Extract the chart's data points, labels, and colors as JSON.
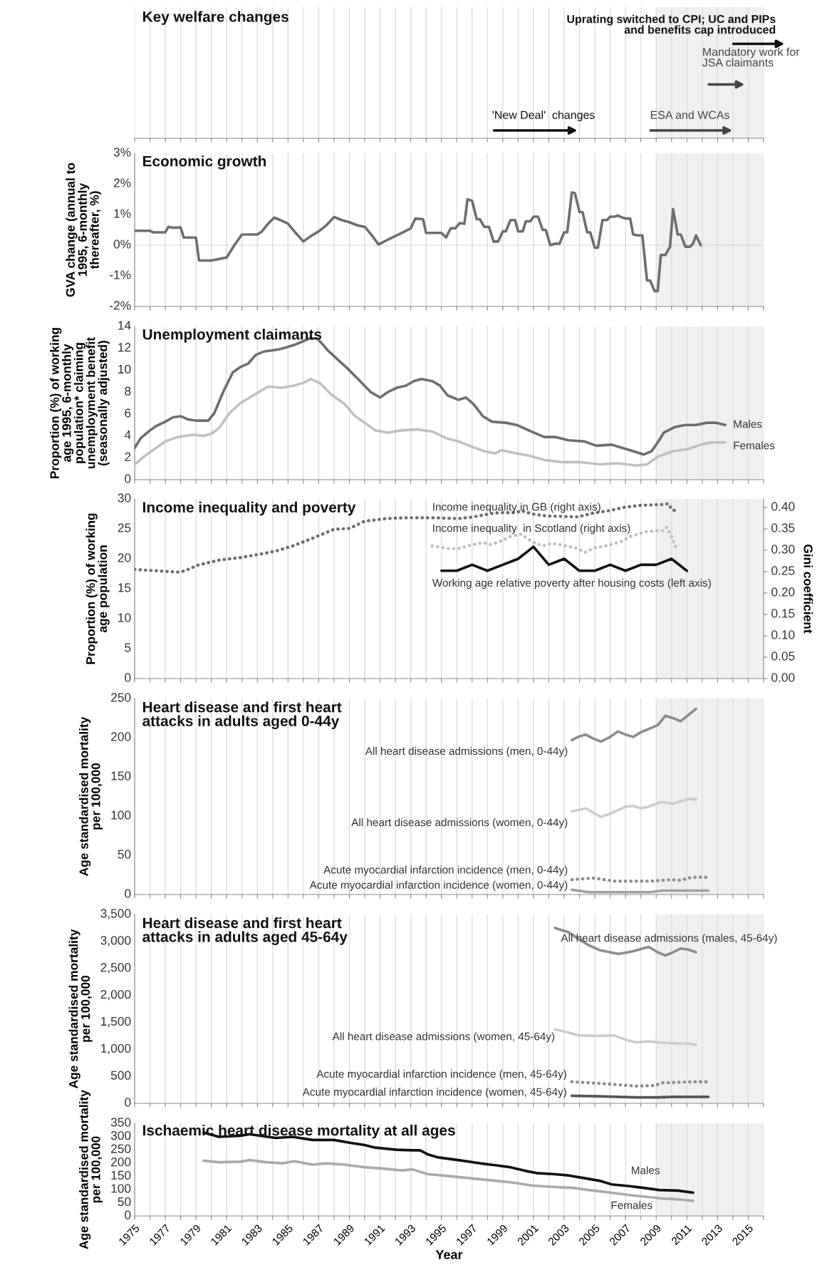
{
  "chart_data": [
    {
      "type": "other",
      "title": "Key welfare changes",
      "annotations": [
        "'New Deal'  changes",
        "ESA and WCAs",
        "Mandatory work for\nJSA claimants",
        "Uprating switched to CPI; UC and PIPs\nand benefits cap introduced"
      ]
    },
    {
      "type": "line",
      "title": "Economic growth",
      "ylabel": "GVA change (annual to\n1995, 6-monthly\nthereafter, %)",
      "xlim": [
        1975,
        2016
      ],
      "xticks": [
        1975,
        {
          "value": 1976,
          "label": null
        },
        1977,
        {
          "value": 1978,
          "label": null
        },
        1979,
        {
          "value": 1980,
          "label": null
        },
        1981,
        {
          "value": 1982,
          "label": null
        },
        1983,
        {
          "value": 1984,
          "label": null
        },
        1985,
        {
          "value": 1986,
          "label": null
        },
        1987,
        {
          "value": 1988,
          "label": null
        },
        1989,
        {
          "value": 1990,
          "label": null
        },
        1991,
        {
          "value": 1992,
          "label": null
        },
        1993,
        {
          "value": 1994,
          "label": null
        },
        1995,
        {
          "value": 1996,
          "label": null
        },
        1997,
        {
          "value": 1998,
          "label": null
        },
        1999,
        {
          "value": 2000,
          "label": null
        },
        2001,
        {
          "value": 2002,
          "label": null
        },
        2003,
        {
          "value": 2004,
          "label": null
        },
        2005,
        {
          "value": 2006,
          "label": null
        },
        2007,
        {
          "value": 2008,
          "label": null
        },
        2009,
        {
          "value": 2010,
          "label": null
        },
        2011,
        {
          "value": 2012,
          "label": null
        },
        2013,
        {
          "value": 2014,
          "label": null
        },
        2015,
        {
          "value": 2016,
          "label": null
        }
      ],
      "ylim": [
        -2,
        3
      ],
      "yticks": [
        {
          "value": -2,
          "label": "-2%"
        },
        {
          "value": -1,
          "label": "-1%"
        },
        {
          "value": 0,
          "label": "0%"
        },
        {
          "value": 1,
          "label": "1%"
        },
        {
          "value": 2,
          "label": "2%"
        },
        {
          "value": 3,
          "label": "3%"
        }
      ],
      "tick_labels": "y",
      "grid": "x",
      "bands": [
        {
          "axis": "x",
          "from": 2009,
          "to": 2016,
          "color": "#f0f0f0"
        }
      ],
      "ref_lines": [
        {
          "axis": "y",
          "value": 0,
          "color": "#999999",
          "line_style": "dotted"
        }
      ],
      "series": [
        {
          "color": "#6e6e6e",
          "x": [
            1975.0,
            1976.0,
            1976.2,
            1977.0,
            1977.2,
            1977.5,
            1978.0,
            1978.2,
            1979.0,
            1979.2,
            1980.0,
            1981.0,
            1981.5,
            1982.0,
            1983.0,
            1983.3,
            1983.7,
            1984.1,
            1984.5,
            1985.0,
            1985.5,
            1986.0,
            1986.5,
            1987.0,
            1987.5,
            1988.0,
            1988.5,
            1989.0,
            1989.5,
            1990.0,
            1990.5,
            1990.9,
            1991.5,
            1992.0,
            1992.5,
            1993.0,
            1993.3,
            1993.8,
            1994.0,
            1995.0,
            1995.3,
            1995.6,
            1995.9,
            1996.2,
            1996.5,
            1996.7,
            1997.0,
            1997.3,
            1997.5,
            1997.8,
            1998.1,
            1998.4,
            1998.7,
            1999.0,
            1999.2,
            1999.5,
            1999.8,
            2000.0,
            2000.3,
            2000.5,
            2000.8,
            2001.0,
            2001.3,
            2001.6,
            2001.8,
            2002.1,
            2002.4,
            2002.7,
            2003.0,
            2003.2,
            2003.5,
            2003.7,
            2004.0,
            2004.2,
            2004.5,
            2004.7,
            2005.0,
            2005.2,
            2005.5,
            2005.8,
            2006.0,
            2006.3,
            2006.5,
            2006.8,
            2007.0,
            2007.3,
            2007.5,
            2007.8,
            2008.1,
            2008.4,
            2008.6,
            2008.9,
            2009.1,
            2009.3,
            2009.6,
            2009.9,
            2010.1,
            2010.4,
            2010.6,
            2010.9,
            2011.2,
            2011.4,
            2011.6,
            2011.9
          ],
          "values": [
            0.47,
            0.47,
            0.42,
            0.42,
            0.6,
            0.57,
            0.58,
            0.25,
            0.25,
            -0.5,
            -0.5,
            -0.4,
            0,
            0.35,
            0.35,
            0.45,
            0.7,
            0.9,
            0.82,
            0.7,
            0.4,
            0.12,
            0.3,
            0.45,
            0.65,
            0.92,
            0.82,
            0.75,
            0.65,
            0.6,
            0.3,
            0.02,
            0.18,
            0.3,
            0.42,
            0.55,
            0.87,
            0.85,
            0.4,
            0.4,
            0.25,
            0.55,
            0.55,
            0.72,
            0.7,
            1.5,
            1.45,
            0.85,
            0.85,
            0.6,
            0.6,
            0.12,
            0.12,
            0.45,
            0.45,
            0.82,
            0.82,
            0.45,
            0.45,
            0.78,
            0.78,
            0.93,
            0.93,
            0.5,
            0.5,
            0.0,
            0.05,
            0.05,
            0.42,
            0.42,
            1.72,
            1.7,
            1.08,
            1.08,
            0.42,
            0.42,
            -0.08,
            -0.08,
            0.82,
            0.82,
            0.93,
            0.93,
            0.97,
            0.9,
            0.87,
            0.87,
            0.35,
            0.32,
            0.32,
            -1.15,
            -1.15,
            -1.5,
            -1.5,
            -0.32,
            -0.32,
            -0.05,
            1.18,
            0.35,
            0.35,
            -0.05,
            -0.05,
            0.05,
            0.32,
            0.0
          ]
        }
      ]
    },
    {
      "type": "line",
      "title": "Unemployment claimants",
      "ylabel": "Proportion (%) of working\nage 1995, 6-monthly\npopulation* claiming\nunemployment benefit\n(seasonally adjusted)",
      "xlim": [
        1975,
        2016
      ],
      "xticks": [
        1975,
        {
          "value": 1976,
          "label": null
        },
        1977,
        {
          "value": 1978,
          "label": null
        },
        1979,
        {
          "value": 1980,
          "label": null
        },
        1981,
        {
          "value": 1982,
          "label": null
        },
        1983,
        {
          "value": 1984,
          "label": null
        },
        1985,
        {
          "value": 1986,
          "label": null
        },
        1987,
        {
          "value": 1988,
          "label": null
        },
        1989,
        {
          "value": 1990,
          "label": null
        },
        1991,
        {
          "value": 1992,
          "label": null
        },
        1993,
        {
          "value": 1994,
          "label": null
        },
        1995,
        {
          "value": 1996,
          "label": null
        },
        1997,
        {
          "value": 1998,
          "label": null
        },
        1999,
        {
          "value": 2000,
          "label": null
        },
        2001,
        {
          "value": 2002,
          "label": null
        },
        2003,
        {
          "value": 2004,
          "label": null
        },
        2005,
        {
          "value": 2006,
          "label": null
        },
        2007,
        {
          "value": 2008,
          "label": null
        },
        2009,
        {
          "value": 2010,
          "label": null
        },
        2011,
        {
          "value": 2012,
          "label": null
        },
        2013,
        {
          "value": 2014,
          "label": null
        },
        2015,
        {
          "value": 2016,
          "label": null
        }
      ],
      "ylim": [
        0,
        14
      ],
      "yticks": [
        0,
        2,
        4,
        6,
        8,
        10,
        12,
        14
      ],
      "tick_labels": "y",
      "grid": "x",
      "bands": [
        {
          "axis": "x",
          "from": 2009,
          "to": 2016,
          "color": "#f0f0f0"
        }
      ],
      "series": [
        {
          "name": "Males",
          "color": "#6e6e6e",
          "x": [
            1975,
            1975.4,
            1976,
            1976.4,
            1977,
            1977.5,
            1978,
            1978.5,
            1979,
            1979.8,
            1980.2,
            1980.8,
            1981.4,
            1981.9,
            1982.4,
            1982.9,
            1983.4,
            1983.9,
            1984.4,
            1984.9,
            1985.4,
            1985.9,
            1986.4,
            1986.9,
            1987.3,
            1987.6,
            1988.3,
            1989.0,
            1989.7,
            1990.4,
            1991.0,
            1991.5,
            1992.1,
            1992.7,
            1993.2,
            1993.7,
            1994.4,
            1994.9,
            1995.4,
            1996.1,
            1996.6,
            1997.1,
            1997.7,
            1998.3,
            1999.2,
            1999.9,
            2000.7,
            2001.7,
            2002.4,
            2003.3,
            2004.3,
            2005.1,
            2006.1,
            2006.8,
            2007.5,
            2008.2,
            2008.7,
            2009.1,
            2009.5,
            2010.2,
            2010.9,
            2011.6,
            2012.3,
            2012.9,
            2013.5
          ],
          "values": [
            2.9,
            3.8,
            4.5,
            4.9,
            5.3,
            5.7,
            5.8,
            5.5,
            5.4,
            5.4,
            6.1,
            8.1,
            9.8,
            10.3,
            10.6,
            11.4,
            11.7,
            11.8,
            11.9,
            12.1,
            12.3,
            12.6,
            12.9,
            12.9,
            12.3,
            11.8,
            10.9,
            10.0,
            9.0,
            8.0,
            7.5,
            8.0,
            8.4,
            8.6,
            9.0,
            9.2,
            9.0,
            8.6,
            7.7,
            7.3,
            7.5,
            6.9,
            5.8,
            5.3,
            5.2,
            5.0,
            4.5,
            3.9,
            3.9,
            3.6,
            3.5,
            3.1,
            3.2,
            2.9,
            2.6,
            2.3,
            2.6,
            3.4,
            4.3,
            4.8,
            5.0,
            5.0,
            5.2,
            5.2,
            5.0
          ]
        },
        {
          "name": "Females",
          "color": "#c0c0c0",
          "x": [
            1975,
            1975.6,
            1976.3,
            1977.0,
            1977.8,
            1978.8,
            1979.5,
            1980.0,
            1980.5,
            1981.2,
            1981.9,
            1982.5,
            1983.2,
            1983.7,
            1984.6,
            1985.4,
            1986.1,
            1986.5,
            1987.1,
            1987.8,
            1988.7,
            1989.3,
            1990.0,
            1990.7,
            1991.5,
            1992.4,
            1993.4,
            1994.4,
            1995.3,
            1996.1,
            1997.0,
            1997.8,
            1998.5,
            1998.9,
            1999.9,
            2000.7,
            2001.7,
            2002.9,
            2004.1,
            2005.3,
            2006.5,
            2007.7,
            2008.4,
            2009.1,
            2010.1,
            2011.1,
            2011.9,
            2012.6,
            2013.5
          ],
          "values": [
            1.4,
            2.1,
            2.8,
            3.5,
            3.9,
            4.1,
            4.0,
            4.2,
            4.7,
            6.1,
            7.0,
            7.5,
            8.1,
            8.5,
            8.4,
            8.6,
            8.9,
            9.2,
            8.8,
            7.8,
            6.9,
            5.9,
            5.2,
            4.5,
            4.3,
            4.5,
            4.6,
            4.4,
            3.8,
            3.5,
            3.0,
            2.6,
            2.4,
            2.7,
            2.4,
            2.2,
            1.8,
            1.6,
            1.6,
            1.4,
            1.5,
            1.3,
            1.4,
            2.1,
            2.6,
            2.8,
            3.2,
            3.4,
            3.4
          ]
        }
      ]
    },
    {
      "type": "line",
      "title": "Income inequality and poverty",
      "ylabel": "Proportion (%) of working\nage population",
      "y2label": "Gini coefficient",
      "xlim": [
        1975,
        2016
      ],
      "xticks": [
        1975,
        {
          "value": 1976,
          "label": null
        },
        1977,
        {
          "value": 1978,
          "label": null
        },
        1979,
        {
          "value": 1980,
          "label": null
        },
        1981,
        {
          "value": 1982,
          "label": null
        },
        1983,
        {
          "value": 1984,
          "label": null
        },
        1985,
        {
          "value": 1986,
          "label": null
        },
        1987,
        {
          "value": 1988,
          "label": null
        },
        1989,
        {
          "value": 1990,
          "label": null
        },
        1991,
        {
          "value": 1992,
          "label": null
        },
        1993,
        {
          "value": 1994,
          "label": null
        },
        1995,
        {
          "value": 1996,
          "label": null
        },
        1997,
        {
          "value": 1998,
          "label": null
        },
        1999,
        {
          "value": 2000,
          "label": null
        },
        2001,
        {
          "value": 2002,
          "label": null
        },
        2003,
        {
          "value": 2004,
          "label": null
        },
        2005,
        {
          "value": 2006,
          "label": null
        },
        2007,
        {
          "value": 2008,
          "label": null
        },
        2009,
        {
          "value": 2010,
          "label": null
        },
        2011,
        {
          "value": 2012,
          "label": null
        },
        2013,
        {
          "value": 2014,
          "label": null
        },
        2015,
        {
          "value": 2016,
          "label": null
        }
      ],
      "ylim": [
        0,
        30
      ],
      "yticks": [
        0,
        5,
        10,
        15,
        20,
        25,
        30
      ],
      "y2lim": [
        0,
        0.42
      ],
      "y2ticks": [
        {
          "value": 0,
          "label": "0.00"
        },
        {
          "value": 0.05,
          "label": "0.05"
        },
        {
          "value": 0.1,
          "label": "0.10"
        },
        {
          "value": 0.15,
          "label": "0.15"
        },
        {
          "value": 0.2,
          "label": "0.20"
        },
        {
          "value": 0.25,
          "label": "0.25"
        },
        {
          "value": 0.3,
          "label": "0.30"
        },
        {
          "value": 0.35,
          "label": "0.35"
        },
        {
          "value": 0.4,
          "label": "0.40"
        }
      ],
      "tick_labels": "y",
      "grid": "x",
      "bands": [
        {
          "axis": "x",
          "from": 2009,
          "to": 2016,
          "color": "#f0f0f0"
        }
      ],
      "series": [
        {
          "name": "Income inequality in GB (right axis)",
          "axis": "y2",
          "line_style": "dotted",
          "color": "#6e6e6e",
          "x": [
            1975,
            1976.4,
            1977.8,
            1978.3,
            1979.1,
            1980.5,
            1981.9,
            1983.2,
            1984.2,
            1985.3,
            1986.6,
            1988.0,
            1989.0,
            1990.0,
            1991.4,
            1992.7,
            1994.4,
            1996.1,
            1997.1,
            1998.1,
            1998.8,
            1999.9,
            2000.2,
            2000.9,
            2001.9,
            2002.9,
            2003.9,
            2004.9,
            2006.0,
            2007.0,
            2008.0,
            2009.4,
            2009.8,
            2010.0,
            2010.2
          ],
          "values": [
            0.255,
            0.252,
            0.249,
            0.252,
            0.265,
            0.277,
            0.283,
            0.291,
            0.298,
            0.31,
            0.328,
            0.349,
            0.351,
            0.368,
            0.374,
            0.376,
            0.376,
            0.374,
            0.378,
            0.385,
            0.388,
            0.388,
            0.393,
            0.385,
            0.38,
            0.379,
            0.378,
            0.387,
            0.393,
            0.401,
            0.405,
            0.407,
            0.409,
            0.396,
            0.393
          ]
        },
        {
          "name": "Income inequality  in Scotland (right axis)",
          "axis": "y2",
          "line_style": "dotted",
          "color": "#c0c0c0",
          "x": [
            1994.4,
            1995.0,
            1995.4,
            1996.1,
            1996.8,
            1997.7,
            1998.2,
            1998.8,
            1999.5,
            2000.2,
            2000.9,
            2001.6,
            2002.2,
            2002.9,
            2003.8,
            2004.4,
            2004.9,
            2005.8,
            2006.7,
            2007.3,
            2008.4,
            2009.4,
            2009.7,
            2010.0,
            2010.3
          ],
          "values": [
            0.31,
            0.307,
            0.304,
            0.304,
            0.311,
            0.318,
            0.313,
            0.32,
            0.332,
            0.338,
            0.32,
            0.31,
            0.316,
            0.312,
            0.305,
            0.295,
            0.305,
            0.311,
            0.32,
            0.332,
            0.344,
            0.346,
            0.354,
            0.332,
            0.305
          ]
        },
        {
          "name": "Working age relative poverty after housing costs (left axis)",
          "color": "#111111",
          "x": [
            1995,
            1996,
            1997,
            1998,
            1999,
            2000,
            2001,
            2002,
            2003,
            2004,
            2005,
            2006,
            2007,
            2008,
            2009,
            2010,
            2011
          ],
          "values": [
            18,
            18,
            19,
            18,
            19,
            20,
            22,
            19,
            20,
            18,
            18,
            19,
            18,
            19,
            19,
            20,
            18
          ]
        }
      ]
    },
    {
      "type": "line",
      "title": "Heart disease and first heart\nattacks in adults aged 0-44y",
      "ylabel": "Age standardised mortality\nper 100,000",
      "xlim": [
        1975,
        2016
      ],
      "xticks": [
        1975,
        {
          "value": 1976,
          "label": null
        },
        1977,
        {
          "value": 1978,
          "label": null
        },
        1979,
        {
          "value": 1980,
          "label": null
        },
        1981,
        {
          "value": 1982,
          "label": null
        },
        1983,
        {
          "value": 1984,
          "label": null
        },
        1985,
        {
          "value": 1986,
          "label": null
        },
        1987,
        {
          "value": 1988,
          "label": null
        },
        1989,
        {
          "value": 1990,
          "label": null
        },
        1991,
        {
          "value": 1992,
          "label": null
        },
        1993,
        {
          "value": 1994,
          "label": null
        },
        1995,
        {
          "value": 1996,
          "label": null
        },
        1997,
        {
          "value": 1998,
          "label": null
        },
        1999,
        {
          "value": 2000,
          "label": null
        },
        2001,
        {
          "value": 2002,
          "label": null
        },
        2003,
        {
          "value": 2004,
          "label": null
        },
        2005,
        {
          "value": 2006,
          "label": null
        },
        2007,
        {
          "value": 2008,
          "label": null
        },
        2009,
        {
          "value": 2010,
          "label": null
        },
        2011,
        {
          "value": 2012,
          "label": null
        },
        2013,
        {
          "value": 2014,
          "label": null
        },
        2015,
        {
          "value": 2016,
          "label": null
        }
      ],
      "ylim": [
        0,
        250
      ],
      "yticks": [
        0,
        50,
        100,
        150,
        200,
        250
      ],
      "tick_labels": "y",
      "grid": "x",
      "bands": [
        {
          "axis": "x",
          "from": 2009,
          "to": 2016,
          "color": "#f0f0f0"
        }
      ],
      "series": [
        {
          "name": "All heart disease admissions (men, 0-44y)",
          "color": "#8c8c8c",
          "x": [
            2003.5,
            2003.9,
            2004.4,
            2004.9,
            2005.4,
            2006.0,
            2006.5,
            2007.0,
            2007.5,
            2008.0,
            2008.5,
            2009.1,
            2009.6,
            2010.1,
            2010.6,
            2011.1,
            2011.6
          ],
          "values": [
            197,
            201,
            204,
            199,
            195,
            201,
            208,
            204,
            201,
            207,
            211,
            216,
            228,
            225,
            221,
            229,
            237
          ]
        },
        {
          "name": "All heart disease admissions (women, 0-44y)",
          "color": "#cccccc",
          "x": [
            2003.5,
            2004.4,
            2005.4,
            2006.0,
            2007.0,
            2007.5,
            2008.0,
            2008.5,
            2009.3,
            2010.1,
            2011.1,
            2011.6
          ],
          "values": [
            106,
            110,
            99,
            103,
            112,
            113,
            110,
            112,
            118,
            116,
            122,
            121
          ]
        },
        {
          "name": "Acute myocardial infarction incidence (men, 0-44y)",
          "line_style": "dotted",
          "color": "#8c8c8c",
          "x": [
            2003.5,
            2004.9,
            2006.3,
            2008.6,
            2010.0,
            2010.6,
            2011.3,
            2012.3
          ],
          "values": [
            19,
            21,
            17,
            17,
            19,
            18,
            22,
            22
          ]
        },
        {
          "name": "Acute myocardial infarction incidence (women, 0-44y)",
          "color": "#a0a0a0",
          "x": [
            2003.5,
            2004.6,
            2008.6,
            2009.4,
            2012.4
          ],
          "values": [
            6,
            3,
            3,
            5,
            5
          ]
        }
      ]
    },
    {
      "type": "line",
      "title": "Heart disease and first heart\nattacks in adults aged 45-64y",
      "ylabel": "Age standardised mortality\nper 100,000",
      "xlim": [
        1975,
        2016
      ],
      "xticks": [
        1975,
        {
          "value": 1976,
          "label": null
        },
        1977,
        {
          "value": 1978,
          "label": null
        },
        1979,
        {
          "value": 1980,
          "label": null
        },
        1981,
        {
          "value": 1982,
          "label": null
        },
        1983,
        {
          "value": 1984,
          "label": null
        },
        1985,
        {
          "value": 1986,
          "label": null
        },
        1987,
        {
          "value": 1988,
          "label": null
        },
        1989,
        {
          "value": 1990,
          "label": null
        },
        1991,
        {
          "value": 1992,
          "label": null
        },
        1993,
        {
          "value": 1994,
          "label": null
        },
        1995,
        {
          "value": 1996,
          "label": null
        },
        1997,
        {
          "value": 1998,
          "label": null
        },
        1999,
        {
          "value": 2000,
          "label": null
        },
        2001,
        {
          "value": 2002,
          "label": null
        },
        2003,
        {
          "value": 2004,
          "label": null
        },
        2005,
        {
          "value": 2006,
          "label": null
        },
        2007,
        {
          "value": 2008,
          "label": null
        },
        2009,
        {
          "value": 2010,
          "label": null
        },
        2011,
        {
          "value": 2012,
          "label": null
        },
        2013,
        {
          "value": 2014,
          "label": null
        },
        2015,
        {
          "value": 2016,
          "label": null
        }
      ],
      "ylim": [
        0,
        3500
      ],
      "yticks": [
        0,
        {
          "value": 500,
          "label": "500"
        },
        {
          "value": 1000,
          "label": "1,000"
        },
        {
          "value": 1500,
          "label": "1,500"
        },
        {
          "value": 2000,
          "label": "2,000"
        },
        {
          "value": 2500,
          "label": "2,500"
        },
        {
          "value": 3000,
          "label": "3,000"
        },
        {
          "value": 3500,
          "label": "3,500"
        }
      ],
      "tick_labels": "y",
      "grid": "x",
      "bands": [
        {
          "axis": "x",
          "from": 2009,
          "to": 2016,
          "color": "#f0f0f0"
        }
      ],
      "series": [
        {
          "name": "All heart disease admissions (males, 45-64y)",
          "color": "#8c8c8c",
          "x": [
            2002.4,
            2003.3,
            2003.9,
            2004.6,
            2005.3,
            2006.0,
            2006.5,
            2007.0,
            2007.5,
            2008.0,
            2008.5,
            2009.1,
            2009.6,
            2010.1,
            2010.6,
            2011.1,
            2011.6
          ],
          "values": [
            3250,
            3170,
            3050,
            2930,
            2840,
            2800,
            2770,
            2790,
            2820,
            2860,
            2900,
            2800,
            2740,
            2800,
            2870,
            2850,
            2800
          ]
        },
        {
          "name": "All heart disease admissions (women, 45-64y)",
          "color": "#cccccc",
          "x": [
            2002.4,
            2003.3,
            2003.9,
            2005.3,
            2006.2,
            2007.0,
            2007.7,
            2008.5,
            2009.1,
            2010.4,
            2011.1,
            2011.6
          ],
          "values": [
            1370,
            1310,
            1260,
            1250,
            1260,
            1180,
            1130,
            1150,
            1130,
            1110,
            1110,
            1080
          ]
        },
        {
          "name": "Acute myocardial infarction incidence (men, 45-64y)",
          "line_style": "dotted",
          "color": "#8c8c8c",
          "x": [
            2003.5,
            2005.3,
            2007.7,
            2008.9,
            2009.4,
            2011.4,
            2012.3
          ],
          "values": [
            400,
            370,
            320,
            330,
            380,
            400,
            400
          ]
        },
        {
          "name": "Acute myocardial infarction incidence (women, 45-64y)",
          "color": "#555555",
          "x": [
            2003.5,
            2005.3,
            2007.7,
            2009.1,
            2010.1,
            2012.4
          ],
          "values": [
            140,
            130,
            110,
            110,
            120,
            120
          ]
        }
      ]
    },
    {
      "type": "line",
      "title": "Ischaemic heart disease mortality at all ages",
      "ylabel": "Age standardised mortality\nper 100,000",
      "xlabel": "Year",
      "xlim": [
        1975,
        2016
      ],
      "xticks": [
        1975,
        {
          "value": 1976,
          "label": null
        },
        1977,
        {
          "value": 1978,
          "label": null
        },
        1979,
        {
          "value": 1980,
          "label": null
        },
        1981,
        {
          "value": 1982,
          "label": null
        },
        1983,
        {
          "value": 1984,
          "label": null
        },
        1985,
        {
          "value": 1986,
          "label": null
        },
        1987,
        {
          "value": 1988,
          "label": null
        },
        1989,
        {
          "value": 1990,
          "label": null
        },
        1991,
        {
          "value": 1992,
          "label": null
        },
        1993,
        {
          "value": 1994,
          "label": null
        },
        1995,
        {
          "value": 1996,
          "label": null
        },
        1997,
        {
          "value": 1998,
          "label": null
        },
        1999,
        {
          "value": 2000,
          "label": null
        },
        2001,
        {
          "value": 2002,
          "label": null
        },
        2003,
        {
          "value": 2004,
          "label": null
        },
        2005,
        {
          "value": 2006,
          "label": null
        },
        2007,
        {
          "value": 2008,
          "label": null
        },
        2009,
        {
          "value": 2010,
          "label": null
        },
        2011,
        {
          "value": 2012,
          "label": null
        },
        2013,
        {
          "value": 2014,
          "label": null
        },
        2015,
        {
          "value": 2016,
          "label": null
        }
      ],
      "ylim": [
        0,
        350
      ],
      "yticks": [
        0,
        50,
        100,
        150,
        200,
        250,
        300,
        350
      ],
      "grid": "x",
      "bands": [
        {
          "axis": "x",
          "from": 2009,
          "to": 2016,
          "color": "#f0f0f0"
        }
      ],
      "series": [
        {
          "name": "Males",
          "color": "#111111",
          "x": [
            1979.5,
            1980.5,
            1981.9,
            1982.5,
            1983.2,
            1984.2,
            1985.3,
            1986.6,
            1988.0,
            1989.3,
            1990.0,
            1990.7,
            1992.1,
            1993.1,
            1993.6,
            1994.1,
            1994.8,
            1996.1,
            1997.5,
            1998.5,
            1999.5,
            2000.5,
            2001.2,
            2002.3,
            2003.3,
            2004.3,
            2005.3,
            2006.1,
            2007.2,
            2008.2,
            2009.2,
            2010.4,
            2011.4
          ],
          "values": [
            315,
            299,
            303,
            309,
            303,
            295,
            299,
            287,
            287,
            274,
            268,
            258,
            250,
            248,
            248,
            233,
            221,
            211,
            199,
            192,
            184,
            170,
            162,
            158,
            153,
            143,
            133,
            119,
            113,
            106,
            98,
            96,
            88
          ]
        },
        {
          "name": "Females",
          "color": "#aaaaaa",
          "x": [
            1979.5,
            1980.5,
            1981.9,
            1982.5,
            1983.6,
            1984.7,
            1985.4,
            1986.6,
            1987.5,
            1988.7,
            1990.0,
            1991.4,
            1992.4,
            1993.1,
            1994.1,
            1995.4,
            1996.8,
            1998.2,
            1999.5,
            2000.9,
            2001.9,
            2003.6,
            2004.9,
            2006.3,
            2007.4,
            2008.4,
            2009.4,
            2010.4,
            2011.4
          ],
          "values": [
            209,
            203,
            205,
            211,
            203,
            199,
            207,
            194,
            199,
            194,
            184,
            178,
            172,
            176,
            158,
            151,
            143,
            135,
            127,
            115,
            111,
            106,
            96,
            86,
            78,
            72,
            66,
            63,
            57
          ]
        }
      ]
    }
  ]
}
